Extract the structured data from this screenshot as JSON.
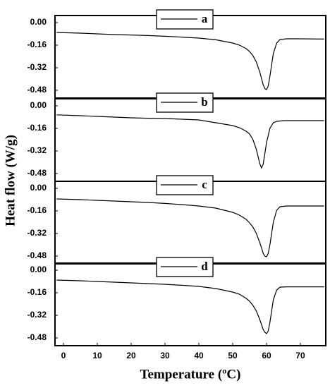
{
  "y_label": "Heat flow (W/g)",
  "x_label": "Temperature (ºC)",
  "chart_data": [
    {
      "type": "line",
      "xlim": [
        -2.5,
        77.5
      ],
      "ylim": [
        -0.535,
        0.05
      ],
      "yticks": [
        {
          "value": 0,
          "label": "0.00"
        },
        -0.16,
        -0.32,
        -0.48
      ],
      "series": [
        {
          "name": "a",
          "color": "#000000",
          "x": [
            -2,
            5,
            10,
            15,
            20,
            25,
            30,
            35,
            40,
            45,
            50,
            52,
            54,
            55,
            56,
            57,
            58,
            58.5,
            59,
            59.5,
            60,
            60.5,
            61,
            61.5,
            62,
            63,
            64,
            66,
            70,
            77
          ],
          "values": [
            -0.07,
            -0.075,
            -0.08,
            -0.085,
            -0.088,
            -0.092,
            -0.097,
            -0.103,
            -0.11,
            -0.122,
            -0.145,
            -0.16,
            -0.185,
            -0.205,
            -0.235,
            -0.28,
            -0.35,
            -0.395,
            -0.44,
            -0.468,
            -0.475,
            -0.45,
            -0.38,
            -0.3,
            -0.22,
            -0.145,
            -0.12,
            -0.115,
            -0.115,
            -0.117
          ]
        }
      ]
    },
    {
      "type": "line",
      "xlim": [
        -2.5,
        77.5
      ],
      "ylim": [
        -0.535,
        0.05
      ],
      "yticks": [
        {
          "value": 0,
          "label": "0.00"
        },
        -0.16,
        -0.32,
        -0.48
      ],
      "series": [
        {
          "name": "b",
          "color": "#000000",
          "x": [
            -2,
            5,
            10,
            15,
            20,
            25,
            30,
            35,
            40,
            45,
            50,
            52,
            54,
            55,
            56,
            57,
            57.5,
            58,
            58.5,
            59,
            59.5,
            60,
            61,
            62,
            63,
            65,
            70,
            77
          ],
          "values": [
            -0.064,
            -0.07,
            -0.075,
            -0.08,
            -0.085,
            -0.088,
            -0.09,
            -0.095,
            -0.1,
            -0.12,
            -0.14,
            -0.155,
            -0.18,
            -0.2,
            -0.24,
            -0.31,
            -0.36,
            -0.41,
            -0.44,
            -0.415,
            -0.34,
            -0.26,
            -0.16,
            -0.12,
            -0.11,
            -0.105,
            -0.105,
            -0.105
          ]
        }
      ]
    },
    {
      "type": "line",
      "xlim": [
        -2.5,
        77.5
      ],
      "ylim": [
        -0.535,
        0.05
      ],
      "yticks": [
        {
          "value": 0,
          "label": "0.00"
        },
        -0.16,
        -0.32,
        -0.48
      ],
      "series": [
        {
          "name": "c",
          "color": "#000000",
          "x": [
            -2,
            5,
            10,
            15,
            20,
            25,
            30,
            35,
            40,
            45,
            50,
            52,
            54,
            55,
            56,
            57,
            58,
            58.5,
            59,
            59.5,
            60,
            60.5,
            61,
            61.5,
            62,
            63,
            64,
            66,
            70,
            77
          ],
          "values": [
            -0.075,
            -0.08,
            -0.085,
            -0.09,
            -0.095,
            -0.1,
            -0.107,
            -0.115,
            -0.125,
            -0.14,
            -0.17,
            -0.19,
            -0.22,
            -0.245,
            -0.275,
            -0.32,
            -0.385,
            -0.42,
            -0.46,
            -0.48,
            -0.485,
            -0.46,
            -0.4,
            -0.32,
            -0.24,
            -0.155,
            -0.13,
            -0.125,
            -0.125,
            -0.125
          ]
        }
      ]
    },
    {
      "type": "line",
      "xlim": [
        -2.5,
        77.5
      ],
      "ylim": [
        -0.535,
        0.05
      ],
      "yticks": [
        {
          "value": 0,
          "label": "0.00"
        },
        -0.16,
        -0.32,
        -0.48
      ],
      "xticks": [
        0,
        10,
        20,
        30,
        40,
        50,
        60,
        70
      ],
      "series": [
        {
          "name": "d",
          "color": "#000000",
          "x": [
            -2,
            5,
            10,
            15,
            20,
            25,
            30,
            35,
            40,
            45,
            50,
            52,
            54,
            55,
            56,
            57,
            58,
            58.5,
            59,
            59.5,
            60,
            60.5,
            61,
            61.5,
            62,
            63,
            64,
            66,
            70,
            77
          ],
          "values": [
            -0.07,
            -0.075,
            -0.08,
            -0.085,
            -0.09,
            -0.095,
            -0.1,
            -0.107,
            -0.115,
            -0.13,
            -0.155,
            -0.17,
            -0.2,
            -0.22,
            -0.25,
            -0.29,
            -0.35,
            -0.385,
            -0.42,
            -0.44,
            -0.45,
            -0.43,
            -0.37,
            -0.29,
            -0.21,
            -0.14,
            -0.12,
            -0.118,
            -0.118,
            -0.118
          ]
        }
      ]
    }
  ]
}
